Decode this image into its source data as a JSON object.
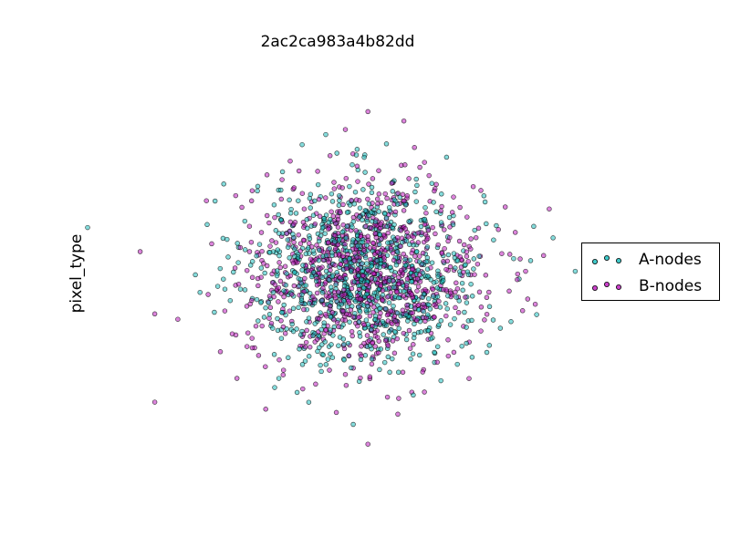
{
  "chart_data": {
    "type": "scatter",
    "title": "2ac2ca983a4b82dd",
    "xlabel": "",
    "ylabel": "pixel_type",
    "xlim": [
      -5,
      5
    ],
    "ylim": [
      -5,
      5
    ],
    "grid": false,
    "axes_visible": false,
    "legend_position": "right",
    "series": [
      {
        "name": "A-nodes",
        "color": "#1fbfbf",
        "marker": "circle",
        "count": 900,
        "center": [
          0.0,
          0.0
        ],
        "spread": [
          1.0,
          1.05
        ],
        "outliers": [
          {
            "x": -4.75,
            "y": 1.05
          },
          {
            "x": 3.6,
            "y": 0.05
          },
          {
            "x": 2.5,
            "y": -1.1
          },
          {
            "x": 1.3,
            "y": -2.45
          }
        ]
      },
      {
        "name": "B-nodes",
        "color": "#bf1fbf",
        "marker": "circle",
        "count": 900,
        "center": [
          0.0,
          0.0
        ],
        "spread": [
          1.0,
          1.05
        ],
        "outliers": [
          {
            "x": 0.05,
            "y": 3.7
          },
          {
            "x": 4.85,
            "y": 0.05
          },
          {
            "x": 2.75,
            "y": 0.05
          },
          {
            "x": 0.05,
            "y": -3.9
          },
          {
            "x": -1.7,
            "y": -3.1
          },
          {
            "x": -3.85,
            "y": 0.5
          }
        ]
      }
    ]
  }
}
